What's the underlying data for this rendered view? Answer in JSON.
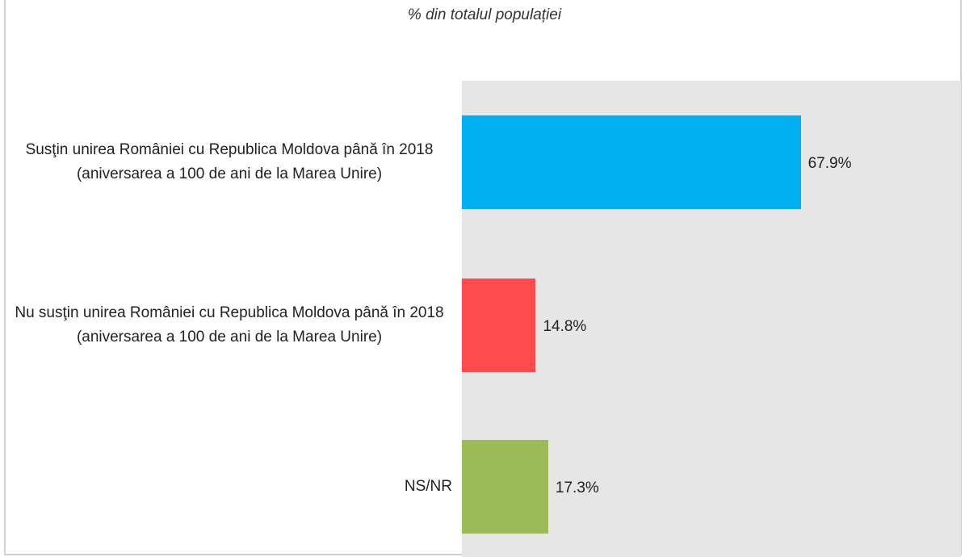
{
  "chart_data": {
    "type": "bar",
    "orientation": "horizontal",
    "subtitle": "% din totalul populației",
    "categories": [
      "Susţin unirea României cu Republica Moldova până în 2018 (aniversarea a 100 de ani de la Marea Unire)",
      "Nu susţin unirea României cu Republica Moldova până în 2018 (aniversarea a 100 de ani de la Marea Unire)",
      "NS/NR"
    ],
    "values": [
      67.9,
      14.8,
      17.3
    ],
    "data_labels": [
      "67.9%",
      "14.8%",
      "17.3%"
    ],
    "colors": [
      "#00b0f0",
      "#ff4b4b",
      "#9bbb59"
    ],
    "plot_background": "#e6e6e6",
    "xlim": [
      0,
      100
    ],
    "grid": false,
    "legend": "none"
  }
}
